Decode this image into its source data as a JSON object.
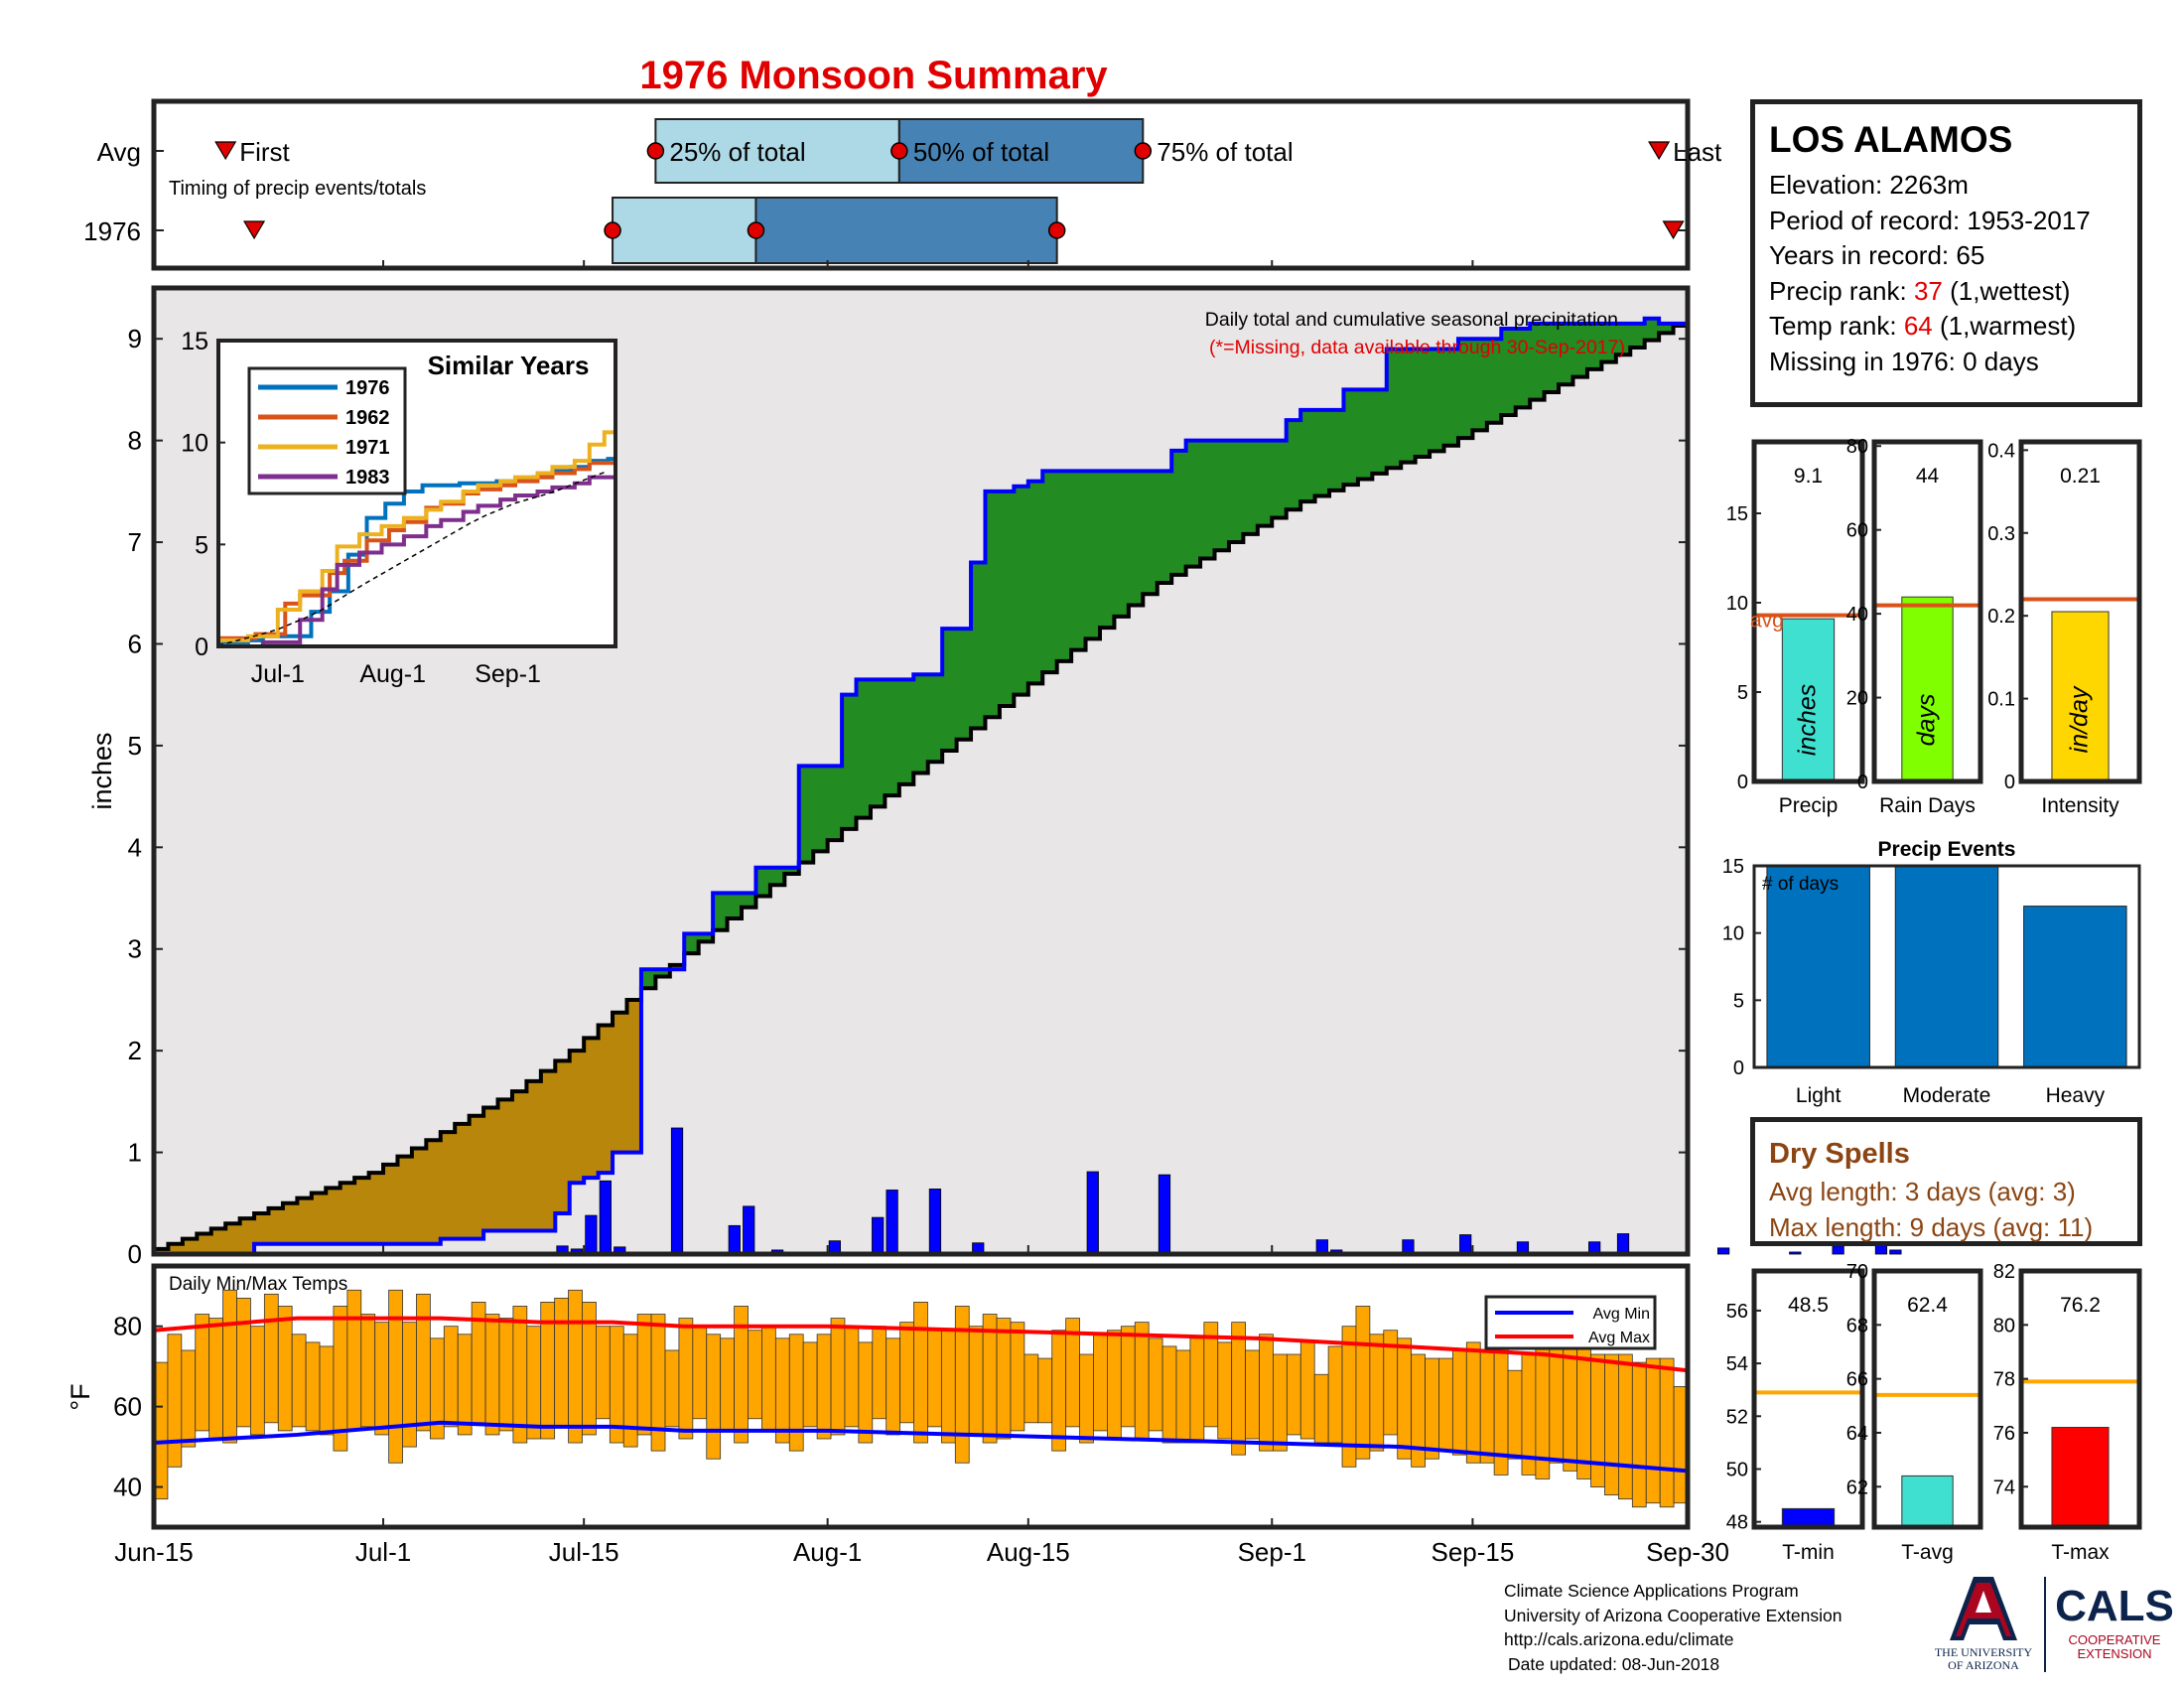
{
  "title": "1976 Monsoon Summary",
  "timing": {
    "rows": [
      "Avg",
      "1976"
    ],
    "caption": "Timing of precip events/totals",
    "labels": {
      "first": "First",
      "q25": "25% of total",
      "q50": "50% of total",
      "q75": "75% of total",
      "last": "Last"
    }
  },
  "station": {
    "name": "LOS ALAMOS",
    "elevation": "Elevation: 2263m",
    "period": "Period of record: 1953-2017",
    "years": "Years in record: 65",
    "precip_rank_label": "Precip rank: ",
    "precip_rank_value": "37",
    "precip_rank_note": " (1,wettest)",
    "temp_rank_label": "Temp rank: ",
    "temp_rank_value": "64",
    "temp_rank_note": " (1,warmest)",
    "missing": "Missing in 1976: 0 days"
  },
  "dry_spells": {
    "title": "Dry Spells",
    "avg_length": "Avg length: 3 days (avg: 3)",
    "max_length": "Max length: 9 days (avg: 11)"
  },
  "footer": {
    "line1": "Climate Science Applications Program",
    "line2": "University of Arizona Cooperative Extension",
    "line3": "http://cals.arizona.edu/climate",
    "line4": "Date updated: 08-Jun-2018"
  },
  "logos": {
    "ua1": "THE UNIVERSITY",
    "ua2": "OF ARIZONA",
    "cals": "CALS",
    "coop1": "COOPERATIVE",
    "coop2": "EXTENSION"
  },
  "colors": {
    "title": "#e00000",
    "avg_line": "#d95319",
    "above_avg": "#228b22",
    "below_avg": "#b8860b",
    "season": "#0000ff",
    "temps": "#ffa500",
    "min": "#0000ff",
    "max": "#ff0000",
    "dry": "#8b4513"
  },
  "chart_data": [
    {
      "type": "timeline",
      "id": "timing",
      "caption": "Timing of precip events/totals",
      "x_ticks": [
        "Jun-15",
        "Jul-1",
        "Jul-15",
        "Aug-1",
        "Aug-15",
        "Sep-1",
        "Sep-15",
        "Sep-30"
      ],
      "avg": {
        "first": "Jun-20",
        "q25": "Jul-20",
        "q50": "Aug-6",
        "q75": "Aug-23",
        "last": "Sep-28"
      },
      "year_1976": {
        "first": "Jun-22",
        "q25": "Jul-17",
        "q50": "Jul-27",
        "q75": "Aug-17",
        "last": "Sep-29"
      }
    },
    {
      "type": "area",
      "id": "cumulative",
      "title": "Daily total and cumulative seasonal precipitation",
      "note": "(*=Missing, data available through 30-Sep-2017)",
      "ylabel": "inches",
      "ylim": [
        0,
        9.5
      ],
      "y_ticks": [
        0,
        1,
        2,
        3,
        4,
        5,
        6,
        7,
        8,
        9
      ],
      "x_ticks": [
        "Jun-15",
        "Jul-1",
        "Jul-15",
        "Aug-1",
        "Aug-15",
        "Sep-1",
        "Sep-15",
        "Sep-30"
      ],
      "avg_cumulative": {
        "x": [
          0,
          15,
          25,
          29,
          33,
          40,
          50,
          60,
          70,
          80,
          90,
          100,
          107
        ],
        "y": [
          0.05,
          0.8,
          1.6,
          2.0,
          2.5,
          3.3,
          4.4,
          5.5,
          6.6,
          7.4,
          7.95,
          8.7,
          9.2
        ]
      },
      "year_cumulative": {
        "x": [
          0,
          7,
          20,
          23,
          28,
          29,
          30,
          31,
          32,
          34,
          37,
          39,
          42,
          45,
          48,
          49,
          53,
          55,
          57,
          58,
          60,
          61,
          62,
          71,
          72,
          79,
          80,
          83,
          86,
          91,
          94,
          96,
          104,
          105,
          107
        ],
        "y": [
          0.0,
          0.1,
          0.15,
          0.23,
          0.4,
          0.7,
          0.75,
          0.8,
          1.0,
          2.8,
          3.15,
          3.55,
          3.8,
          4.8,
          5.5,
          5.65,
          5.7,
          6.15,
          6.8,
          7.5,
          7.55,
          7.6,
          7.7,
          7.9,
          8.0,
          8.2,
          8.3,
          8.5,
          8.9,
          9.0,
          9.1,
          9.15,
          9.2,
          9.15,
          9.2
        ]
      },
      "daily": {
        "x": [
          28,
          29,
          30,
          31,
          32,
          36,
          40,
          41,
          43,
          47,
          50,
          51,
          54,
          57,
          65,
          70,
          81,
          82,
          87,
          91,
          95,
          100,
          102,
          109,
          114,
          117,
          120,
          121
        ],
        "y": [
          0.08,
          0.05,
          0.38,
          0.72,
          0.07,
          1.24,
          0.28,
          0.47,
          0.04,
          0.13,
          0.36,
          0.63,
          0.64,
          0.11,
          0.81,
          0.78,
          0.14,
          0.04,
          0.14,
          0.19,
          0.12,
          0.12,
          0.2,
          0.06,
          0.02,
          0.08,
          0.45,
          0.04
        ]
      },
      "inset": {
        "title": "Similar Years",
        "ylim": [
          0,
          15
        ],
        "y_ticks": [
          0,
          5,
          10,
          15
        ],
        "x_ticks": [
          "Jul-1",
          "Aug-1",
          "Sep-1"
        ],
        "series": [
          {
            "name": "1976",
            "color": "#0072bd",
            "x": [
              0,
              5,
              8,
              12,
              18,
              25,
              30,
              35,
              40,
              45,
              50,
              55,
              60,
              65,
              70,
              75,
              80,
              85,
              90,
              95,
              100,
              105,
              107
            ],
            "y": [
              0.2,
              0.2,
              0.3,
              0.5,
              0.5,
              1.7,
              2.7,
              4.5,
              6.3,
              7.0,
              7.6,
              7.9,
              7.9,
              8.0,
              8.0,
              8.1,
              8.2,
              8.3,
              8.6,
              8.8,
              9.1,
              9.2,
              9.2
            ]
          },
          {
            "name": "1962",
            "color": "#d95319",
            "x": [
              0,
              10,
              18,
              22,
              30,
              34,
              40,
              46,
              50,
              56,
              60,
              66,
              70,
              76,
              80,
              86,
              90,
              96,
              100,
              107
            ],
            "y": [
              0.4,
              0.6,
              2.1,
              2.5,
              3.6,
              4.2,
              5.2,
              5.7,
              6.1,
              6.8,
              7.0,
              7.5,
              7.7,
              7.9,
              8.1,
              8.3,
              8.5,
              8.7,
              9.0,
              9.3
            ]
          },
          {
            "name": "1971",
            "color": "#edb120",
            "x": [
              0,
              8,
              16,
              22,
              28,
              32,
              38,
              44,
              50,
              56,
              60,
              66,
              70,
              76,
              80,
              86,
              90,
              96,
              100,
              104,
              107
            ],
            "y": [
              0.3,
              0.5,
              1.8,
              2.7,
              3.7,
              4.9,
              5.5,
              5.9,
              6.3,
              6.7,
              7.1,
              7.6,
              7.9,
              8.1,
              8.3,
              8.5,
              8.8,
              9.1,
              9.9,
              10.5,
              11.0
            ]
          },
          {
            "name": "1983",
            "color": "#7e2f8e",
            "x": [
              0,
              12,
              22,
              28,
              32,
              38,
              44,
              50,
              56,
              60,
              66,
              70,
              76,
              80,
              86,
              90,
              96,
              100,
              107
            ],
            "y": [
              0.0,
              0.2,
              1.3,
              2.8,
              4.0,
              4.6,
              5.0,
              5.4,
              5.9,
              6.2,
              6.6,
              6.9,
              7.2,
              7.4,
              7.6,
              7.8,
              8.0,
              8.3,
              8.7
            ]
          }
        ]
      }
    },
    {
      "type": "bar",
      "id": "precip-total",
      "categories": [
        "Precip"
      ],
      "values": [
        9.1
      ],
      "value_label": "9.1",
      "avg": 9.3,
      "avg_label": "avg",
      "unit_label": "inches",
      "ylim": [
        0,
        19
      ],
      "y_ticks": [
        0,
        5,
        10,
        15
      ],
      "color": "#40e0d0"
    },
    {
      "type": "bar",
      "id": "rain-days",
      "categories": [
        "Rain Days"
      ],
      "values": [
        44
      ],
      "value_label": "44",
      "avg": 42,
      "unit_label": "days",
      "ylim": [
        0,
        81
      ],
      "y_ticks": [
        0,
        20,
        40,
        60,
        80
      ],
      "color": "#7fff00"
    },
    {
      "type": "bar",
      "id": "intensity",
      "categories": [
        "Intensity"
      ],
      "values": [
        0.205
      ],
      "value_label": "0.21",
      "avg": 0.22,
      "unit_label": "in/day",
      "ylim": [
        0,
        0.41
      ],
      "y_ticks": [
        0,
        0.1,
        0.2,
        0.3,
        0.4
      ],
      "tick_labels": [
        "0",
        "0.1",
        "0.2",
        "0.3",
        "0.4"
      ],
      "color": "#ffd700"
    },
    {
      "type": "bar",
      "id": "precip-events",
      "title": "Precip Events",
      "ylabel": "# of days",
      "categories": [
        "Light",
        "Moderate",
        "Heavy"
      ],
      "values": [
        15,
        15,
        12
      ],
      "ylim": [
        0,
        15
      ],
      "y_ticks": [
        0,
        5,
        10,
        15
      ],
      "color": "#0072bd"
    },
    {
      "type": "bar",
      "id": "daily-temps",
      "title": "Daily Min/Max Temps",
      "ylabel": "°F",
      "ylim": [
        30,
        95
      ],
      "y_ticks": [
        40,
        60,
        80
      ],
      "x_ticks": [
        "Jun-15",
        "Jul-1",
        "Jul-15",
        "Aug-1",
        "Aug-15",
        "Sep-1",
        "Sep-15",
        "Sep-30"
      ],
      "legend": [
        "Avg Min",
        "Avg Max"
      ],
      "avg_min": {
        "x": [
          0,
          10,
          20,
          27,
          32,
          37,
          47,
          57,
          67,
          77,
          87,
          97,
          107
        ],
        "y": [
          51,
          53,
          56,
          55,
          55,
          54,
          54,
          53,
          52,
          51,
          50,
          47,
          44
        ]
      },
      "avg_max": {
        "x": [
          0,
          10,
          20,
          27,
          32,
          37,
          47,
          57,
          67,
          77,
          87,
          97,
          107
        ],
        "y": [
          79,
          82,
          82,
          81,
          81,
          80,
          80,
          79,
          78,
          77,
          75,
          73,
          69
        ]
      },
      "tmin": [
        37,
        45,
        50,
        54,
        52,
        51,
        55,
        53,
        56,
        54,
        55,
        54,
        53,
        49,
        54,
        55,
        53,
        46,
        50,
        54,
        52,
        55,
        53,
        56,
        53,
        54,
        51,
        52,
        52,
        55,
        51,
        53,
        57,
        51,
        50,
        53,
        49,
        55,
        52,
        57,
        47,
        54,
        51,
        57,
        54,
        51,
        49,
        55,
        52,
        53,
        55,
        51,
        57,
        53,
        56,
        51,
        55,
        51,
        46,
        53,
        51,
        52,
        54,
        56,
        56,
        49,
        55,
        51,
        54,
        52,
        55,
        52,
        54,
        51,
        51,
        51,
        55,
        52,
        48,
        52,
        49,
        49,
        53,
        52,
        51,
        51,
        45,
        47,
        49,
        53,
        47,
        45,
        47,
        49,
        48,
        46,
        46,
        43,
        47,
        43,
        42,
        46,
        44,
        42,
        40,
        38,
        37,
        35,
        36,
        35,
        36
      ],
      "tmax": [
        71,
        78,
        74,
        83,
        82,
        89,
        87,
        80,
        88,
        85,
        78,
        76,
        75,
        85,
        89,
        83,
        81,
        89,
        81,
        88,
        77,
        80,
        78,
        86,
        83,
        82,
        85,
        80,
        86,
        87,
        89,
        86,
        80,
        80,
        78,
        83,
        83,
        74,
        82,
        80,
        78,
        77,
        85,
        79,
        80,
        77,
        78,
        76,
        78,
        82,
        80,
        76,
        80,
        77,
        81,
        86,
        79,
        79,
        85,
        80,
        83,
        82,
        81,
        73,
        72,
        79,
        82,
        73,
        78,
        79,
        80,
        81,
        77,
        75,
        74,
        77,
        81,
        76,
        81,
        74,
        78,
        73,
        73,
        76,
        68,
        75,
        80,
        85,
        78,
        79,
        77,
        73,
        72,
        72,
        74,
        76,
        74,
        76,
        69,
        73,
        78,
        77,
        79,
        75,
        73,
        73,
        73,
        71,
        72,
        72,
        65
      ]
    },
    {
      "type": "bar",
      "id": "t-min",
      "categories": [
        "T-min"
      ],
      "values": [
        48.5
      ],
      "value_label": "48.5",
      "avg": 52.9,
      "ylim": [
        47.8,
        57.5
      ],
      "y_ticks": [
        48,
        50,
        52,
        54,
        56
      ],
      "color": "#0000ff"
    },
    {
      "type": "bar",
      "id": "t-avg",
      "categories": [
        "T-avg"
      ],
      "values": [
        62.4
      ],
      "value_label": "62.4",
      "avg": 65.4,
      "ylim": [
        60.5,
        70
      ],
      "y_ticks": [
        62,
        64,
        66,
        68,
        70
      ],
      "color": "#40e0d0"
    },
    {
      "type": "bar",
      "id": "t-max",
      "categories": [
        "T-max"
      ],
      "values": [
        76.2
      ],
      "value_label": "76.2",
      "avg": 77.9,
      "ylim": [
        72.5,
        82
      ],
      "y_ticks": [
        74,
        76,
        78,
        80,
        82
      ],
      "color": "#ff0000"
    }
  ]
}
